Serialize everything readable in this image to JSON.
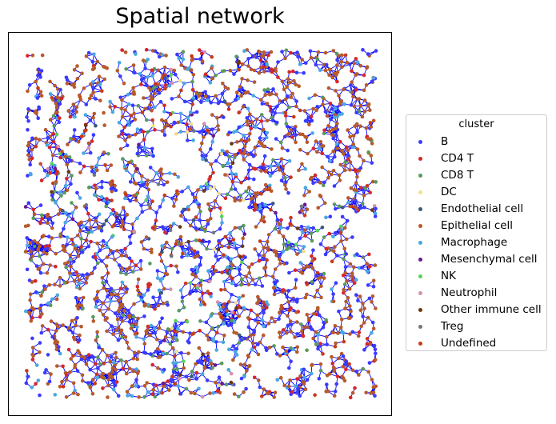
{
  "chart_data": {
    "type": "scatter",
    "title": "Spatial network",
    "xlabel": "",
    "ylabel": "",
    "axes_ticks": "none",
    "grid": false,
    "edges": {
      "color": "#0000ff"
    },
    "legend": {
      "title": "cluster",
      "placement": "right",
      "entries": [
        {
          "name": "B",
          "color": "#3b3bff"
        },
        {
          "name": "CD4 T",
          "color": "#d62728"
        },
        {
          "name": "CD8 T",
          "color": "#5a9a5a"
        },
        {
          "name": "DC",
          "color": "#f0e08a"
        },
        {
          "name": "Endothelial cell",
          "color": "#3a5a7a"
        },
        {
          "name": "Epithelial cell",
          "color": "#b85a2a"
        },
        {
          "name": "Macrophage",
          "color": "#4aa8e0"
        },
        {
          "name": "Mesenchymal cell",
          "color": "#6a1a8a"
        },
        {
          "name": "NK",
          "color": "#5ad05a"
        },
        {
          "name": "Neutrophil",
          "color": "#d890b0"
        },
        {
          "name": "Other immune cell",
          "color": "#6a3a10"
        },
        {
          "name": "Treg",
          "color": "#707880"
        },
        {
          "name": "Undefined",
          "color": "#c83a1a"
        }
      ]
    }
  }
}
